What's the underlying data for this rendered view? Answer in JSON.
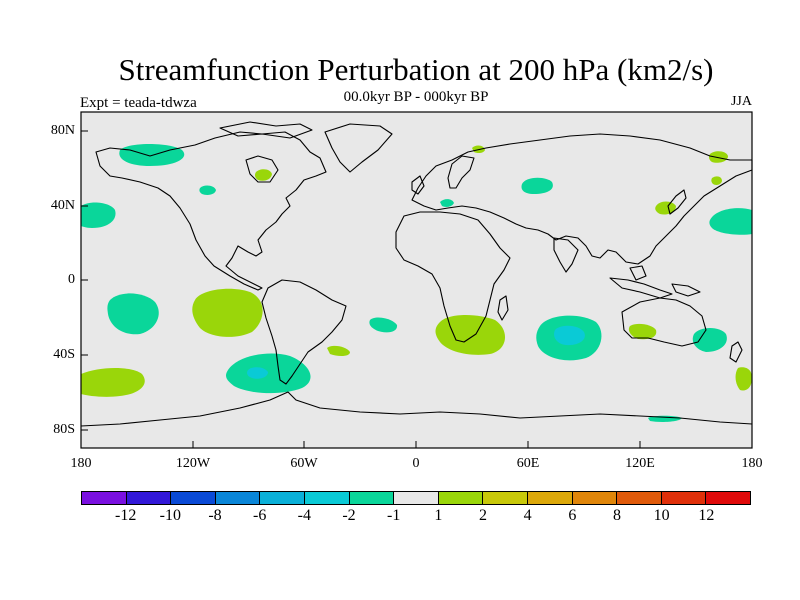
{
  "title": "Streamfunction Perturbation at 200 hPa (km2/s)",
  "subtitle": "00.0kyr BP - 000kyr BP",
  "experiment": "Expt = teada-tdwza",
  "season": "JJA",
  "lat_labels": [
    "80N",
    "40N",
    "0",
    "40S",
    "80S"
  ],
  "lon_labels": [
    "180",
    "120W",
    "60W",
    "0",
    "60E",
    "120E",
    "180"
  ],
  "colorbar": {
    "colors": [
      "#7a10e0",
      "#3218d8",
      "#0a4ad6",
      "#0a86d8",
      "#0ab0d8",
      "#0acad6",
      "#0ad69a",
      "#e8e8e8",
      "#9ad60a",
      "#c8c80a",
      "#dca80a",
      "#e0860a",
      "#e05a0a",
      "#e0300a",
      "#e00a0a"
    ],
    "labels": [
      "-12",
      "-10",
      "-8",
      "-6",
      "-4",
      "-2",
      "-1",
      "1",
      "2",
      "4",
      "6",
      "8",
      "10",
      "12"
    ]
  },
  "map": {
    "background": "#e8e8e8",
    "positive_color": "#9ad60a",
    "negative_color": "#0ad69a",
    "strong_negative_color": "#0acad6"
  }
}
